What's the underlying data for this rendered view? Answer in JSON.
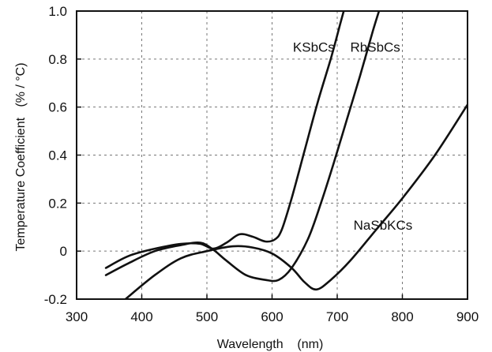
{
  "chart_data": {
    "type": "line",
    "title": "",
    "xlabel": "Wavelength    (nm)",
    "ylabel": "Temperature Coefficient   (% / °C)",
    "xlim": [
      300,
      900
    ],
    "ylim": [
      -0.2,
      1.0
    ],
    "x_ticks": [
      300,
      400,
      500,
      600,
      700,
      800,
      900
    ],
    "y_ticks": [
      -0.2,
      0,
      0.2,
      0.4,
      0.6,
      0.8,
      1.0
    ],
    "x_tick_labels": [
      "300",
      "400",
      "500",
      "600",
      "700",
      "800",
      "900"
    ],
    "y_tick_labels": [
      "-0.2",
      "0",
      "0.2",
      "0.4",
      "0.6",
      "0.8",
      "1.0"
    ],
    "grid": true,
    "grid_style": "dashed",
    "line_color": "#111111",
    "series": [
      {
        "name": "KSbCs",
        "points": [
          [
            345,
            -0.07
          ],
          [
            380,
            -0.02
          ],
          [
            420,
            0.01
          ],
          [
            460,
            0.03
          ],
          [
            490,
            0.03
          ],
          [
            510,
            0.01
          ],
          [
            530,
            0.035
          ],
          [
            550,
            0.07
          ],
          [
            570,
            0.06
          ],
          [
            590,
            0.04
          ],
          [
            605,
            0.05
          ],
          [
            615,
            0.09
          ],
          [
            630,
            0.22
          ],
          [
            650,
            0.42
          ],
          [
            670,
            0.62
          ],
          [
            690,
            0.8
          ],
          [
            705,
            0.95
          ],
          [
            715,
            1.05
          ]
        ]
      },
      {
        "name": "RbSbCs",
        "points": [
          [
            345,
            -0.1
          ],
          [
            380,
            -0.05
          ],
          [
            420,
            0.0
          ],
          [
            460,
            0.025
          ],
          [
            490,
            0.035
          ],
          [
            510,
            0.005
          ],
          [
            530,
            -0.04
          ],
          [
            560,
            -0.1
          ],
          [
            590,
            -0.12
          ],
          [
            610,
            -0.12
          ],
          [
            630,
            -0.07
          ],
          [
            655,
            0.05
          ],
          [
            675,
            0.2
          ],
          [
            695,
            0.37
          ],
          [
            715,
            0.55
          ],
          [
            735,
            0.73
          ],
          [
            755,
            0.92
          ],
          [
            770,
            1.05
          ]
        ]
      },
      {
        "name": "NaSbKCs",
        "points": [
          [
            375,
            -0.2
          ],
          [
            420,
            -0.1
          ],
          [
            460,
            -0.03
          ],
          [
            500,
            0.0
          ],
          [
            540,
            0.02
          ],
          [
            570,
            0.015
          ],
          [
            600,
            -0.01
          ],
          [
            630,
            -0.07
          ],
          [
            650,
            -0.13
          ],
          [
            668,
            -0.16
          ],
          [
            690,
            -0.12
          ],
          [
            720,
            -0.04
          ],
          [
            760,
            0.09
          ],
          [
            800,
            0.22
          ],
          [
            850,
            0.4
          ],
          [
            900,
            0.61
          ]
        ]
      }
    ],
    "labels": [
      {
        "series": "KSbCs",
        "text": "KSbCs",
        "x": 632,
        "y": 0.83
      },
      {
        "series": "RbSbCs",
        "text": "RbSbCs",
        "x": 720,
        "y": 0.83
      },
      {
        "series": "NaSbKCs",
        "text": "NaSbKCs",
        "x": 725,
        "y": 0.09
      }
    ]
  }
}
